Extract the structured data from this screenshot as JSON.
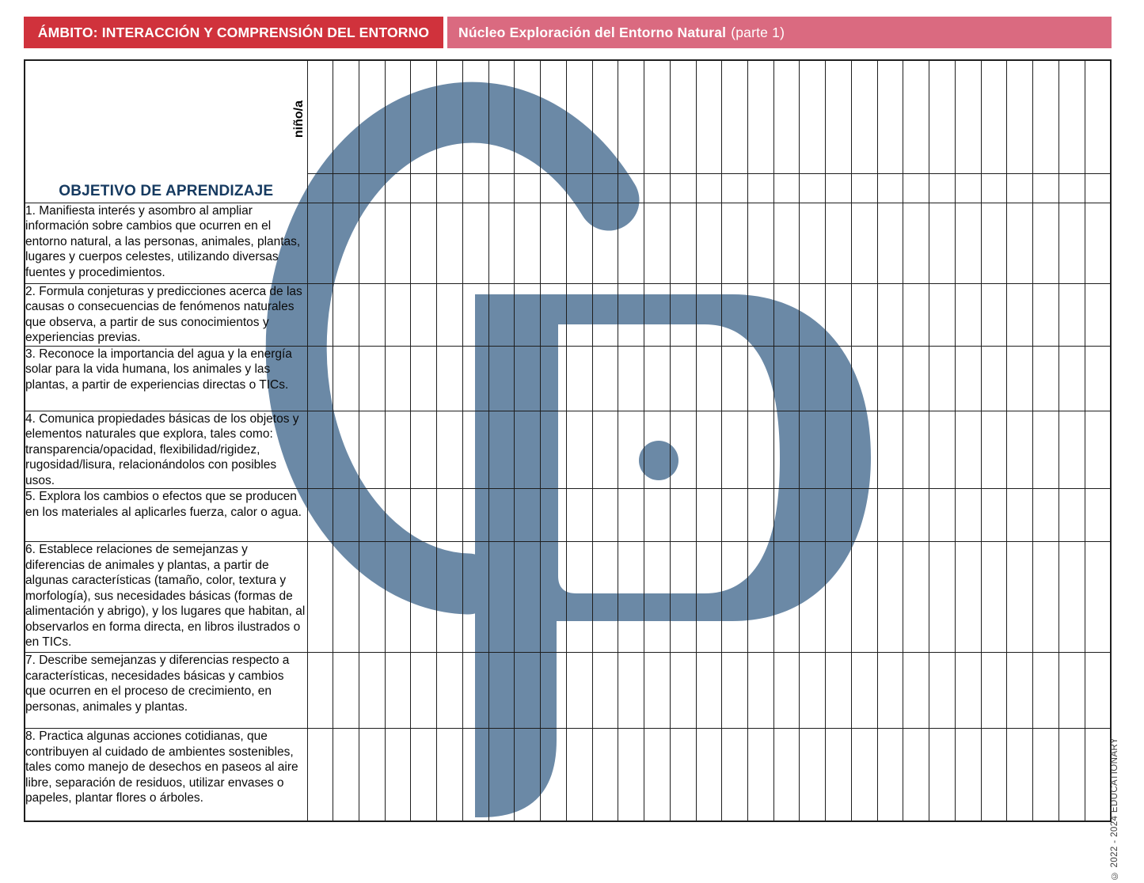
{
  "header": {
    "ambito_label": "ÁMBITO: INTERACCIÓN Y COMPRENSIÓN DEL ENTORNO",
    "nucleo_title": "Núcleo Exploración del Entorno Natural",
    "nucleo_suffix": "(parte 1)",
    "ambito_bg": "#d0323c",
    "nucleo_bg": "#da6a80"
  },
  "table": {
    "column_header_rotated": "niño/a",
    "objective_header": "OBJETIVO DE APRENDIZAJE",
    "student_columns": 31,
    "objectives": [
      "1. Manifiesta interés y asombro al ampliar información sobre cambios que ocurren en el entorno natural, a las personas, animales, plantas, lugares y cuerpos celestes, utilizando diversas fuentes y procedimientos.",
      "2. Formula conjeturas y predicciones acerca de las causas o consecuencias de fenómenos naturales que observa, a partir de sus conocimientos y experiencias previas.",
      "3. Reconoce la importancia del agua y la energía solar para la vida humana, los animales y las plantas, a partir de experiencias directas o TICs.",
      "4. Comunica propiedades básicas de los objetos y elementos naturales que explora, tales como: transparencia/opacidad, flexibilidad/rigidez, rugosidad/lisura, relacionándolos con posibles usos.",
      "5. Explora los cambios o efectos que se producen en los materiales al aplicarles fuerza, calor o agua.",
      "6. Establece relaciones de semejanzas y diferencias de animales y plantas, a partir de algunas características (tamaño, color, textura y morfología), sus necesidades básicas (formas de alimentación y abrigo), y los lugares que habitan, al observarlos en forma directa, en libros ilustrados o en TICs.",
      "7. Describe semejanzas y diferencias respecto a características, necesidades básicas y cambios que ocurren en el proceso de crecimiento, en personas, animales y plantas.",
      "8. Practica algunas acciones cotidianas, que contribuyen al cuidado de ambientes sostenibles, tales como manejo de desechos en paseos al aire libre, separación de residuos, utilizar envases o papeles, plantar flores o árboles."
    ]
  },
  "footer": {
    "copyright": "© 2022 - 2024 EDUCATIONARY"
  },
  "watermark": {
    "icon": "educationary-logo",
    "color": "#6b89a6"
  }
}
